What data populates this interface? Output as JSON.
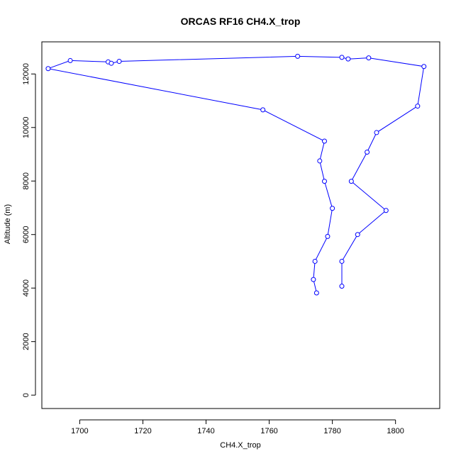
{
  "chart_data": {
    "type": "line",
    "title": "ORCAS RF16 CH4.X_trop",
    "xlabel": "CH4.X_trop",
    "ylabel": "Altitude (m)",
    "xlim": [
      1688,
      1814
    ],
    "ylim": [
      -500,
      13200
    ],
    "x_ticks": [
      1700,
      1720,
      1740,
      1760,
      1780,
      1800
    ],
    "y_ticks": [
      0,
      2000,
      4000,
      6000,
      8000,
      10000,
      12000
    ],
    "grid": false,
    "legend": "none",
    "colors": {
      "series": "#0000ff",
      "axes": "#000000"
    },
    "series": [
      {
        "x": [
          1775,
          1774,
          1774.5,
          1778.5,
          1780,
          1777.5,
          1776,
          1777.5,
          1758,
          1690,
          1697,
          1709,
          1710,
          1712.5,
          1769,
          1783,
          1785,
          1791.5,
          1809,
          1807,
          1794,
          1791,
          1786,
          1797,
          1788,
          1783,
          1783
        ],
        "y": [
          3820,
          4320,
          5000,
          5930,
          6980,
          7990,
          8750,
          9490,
          10660,
          12200,
          12500,
          12450,
          12400,
          12470,
          12660,
          12620,
          12560,
          12600,
          12280,
          10800,
          9810,
          9080,
          7990,
          6900,
          6000,
          5000,
          4070
        ]
      }
    ]
  }
}
